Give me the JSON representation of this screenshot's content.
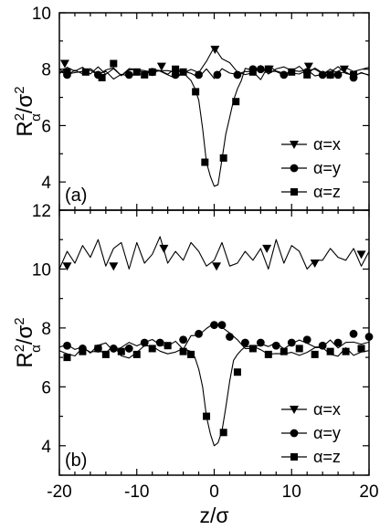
{
  "chart_data": [
    {
      "type": "line",
      "panel_label": "(a)",
      "ylabel_base": "R",
      "ylabel_sup": "2",
      "ylabel_sub": "α",
      "ylabel_den": "/σ",
      "ylabel_den_sup": "2",
      "xlim": [
        -20,
        20
      ],
      "ylim": [
        3,
        10
      ],
      "yticks": [
        4,
        6,
        8,
        10
      ],
      "x_minor_step": 2,
      "y_minor_step": 1,
      "legend_position": "lower-right",
      "series": [
        {
          "name": "α=x",
          "marker": "triangle-down",
          "x": [
            -20.0,
            -19.0,
            -18.0,
            -17.0,
            -16.0,
            -15.0,
            -14.0,
            -13.0,
            -12.0,
            -11.0,
            -10.0,
            -9.0,
            -8.0,
            -7.0,
            -6.0,
            -5.0,
            -4.0,
            -3.0,
            -2.0,
            -1.0,
            0.0,
            1.0,
            2.0,
            3.0,
            4.0,
            5.0,
            6.0,
            7.0,
            8.0,
            9.0,
            10.0,
            11.0,
            12.0,
            13.0,
            14.0,
            15.0,
            16.0,
            17.0,
            18.0,
            19.0,
            20.0
          ],
          "y": [
            7.84,
            8.07,
            7.93,
            8.07,
            7.83,
            8.08,
            7.82,
            8.02,
            7.77,
            8.02,
            7.99,
            7.95,
            7.89,
            7.95,
            7.82,
            8.04,
            7.86,
            7.99,
            7.88,
            8.28,
            8.78,
            8.37,
            8.23,
            7.9,
            7.81,
            7.87,
            8.13,
            7.83,
            8.01,
            8.08,
            7.95,
            8.1,
            7.85,
            8.04,
            7.87,
            7.89,
            8.09,
            7.85,
            7.78,
            7.86,
            7.8
          ],
          "marker_x": [
            -19.3,
            -6.8,
            0.1,
            7.1,
            12.2,
            16.8
          ],
          "marker_y": [
            8.2,
            8.1,
            8.7,
            8.0,
            8.1,
            8.0
          ]
        },
        {
          "name": "α=y",
          "marker": "circle",
          "x": [
            -20.0,
            -19.0,
            -18.0,
            -17.0,
            -16.0,
            -15.0,
            -14.0,
            -13.0,
            -12.0,
            -11.0,
            -10.0,
            -9.0,
            -8.0,
            -7.0,
            -6.0,
            -5.0,
            -4.0,
            -3.0,
            -2.0,
            -1.0,
            0.0,
            1.0,
            2.0,
            3.0,
            4.0,
            5.0,
            6.0,
            7.0,
            8.0,
            9.0,
            10.0,
            11.0,
            12.0,
            13.0,
            14.0,
            15.0,
            16.0,
            17.0,
            18.0,
            19.0,
            20.0
          ],
          "y": [
            8.0,
            7.79,
            7.96,
            7.84,
            8.02,
            7.82,
            7.93,
            7.65,
            7.82,
            7.76,
            7.86,
            7.8,
            7.99,
            7.95,
            7.95,
            7.9,
            7.94,
            7.85,
            7.71,
            8.01,
            7.67,
            8.02,
            7.86,
            7.82,
            7.92,
            7.91,
            7.63,
            8.12,
            7.94,
            7.85,
            7.86,
            7.83,
            7.96,
            8.0,
            7.84,
            7.7,
            7.93,
            8.05,
            7.92,
            7.99,
            8.07
          ],
          "marker_x": [
            -19.0,
            -15.0,
            -11.0,
            -8.0,
            -5.0,
            -2.0,
            0.4,
            3.0,
            5.0,
            6.0,
            9.0,
            12.0,
            14.0,
            15.0,
            16.0,
            18.0
          ],
          "marker_y": [
            7.8,
            7.8,
            7.8,
            7.9,
            7.8,
            7.8,
            7.8,
            7.8,
            8.0,
            8.0,
            7.8,
            7.9,
            7.8,
            7.8,
            7.8,
            7.7
          ]
        },
        {
          "name": "α=z",
          "marker": "square",
          "x": [
            -20.0,
            -19.0,
            -18.0,
            -17.0,
            -16.0,
            -15.0,
            -14.0,
            -13.0,
            -12.0,
            -11.0,
            -10.0,
            -9.0,
            -8.0,
            -7.0,
            -6.0,
            -5.0,
            -4.0,
            -3.0,
            -2.5,
            -2.0,
            -1.5,
            -1.0,
            -0.5,
            0.0,
            0.5,
            1.0,
            1.5,
            2.0,
            2.5,
            3.0,
            3.5,
            4.0,
            5.0,
            6.0,
            7.0,
            8.0,
            9.0,
            10.0,
            11.0,
            12.0,
            13.0,
            14.0,
            15.0,
            16.0,
            17.0,
            18.0,
            19.0,
            20.0
          ],
          "y": [
            7.92,
            7.82,
            7.88,
            7.92,
            7.96,
            7.79,
            7.97,
            8.05,
            7.77,
            7.97,
            8.0,
            7.85,
            7.99,
            7.93,
            7.8,
            7.68,
            7.87,
            7.6,
            7.32,
            6.9,
            5.9,
            4.7,
            4.2,
            3.85,
            3.9,
            4.8,
            5.7,
            6.3,
            6.9,
            7.3,
            7.6,
            8.03,
            7.96,
            7.97,
            7.93,
            7.92,
            7.79,
            7.96,
            7.92,
            7.98,
            7.76,
            7.82,
            8.0,
            7.86,
            7.9,
            7.74,
            7.88,
            7.78
          ],
          "marker_x": [
            -19.0,
            -16.6,
            -14.5,
            -13.0,
            -10.0,
            -9.0,
            -8.0,
            -5.0,
            -4.0,
            -2.4,
            -1.2,
            1.2,
            2.8,
            5.0,
            7.0,
            10.0,
            12.0,
            15.0,
            18.0
          ],
          "marker_y": [
            7.9,
            7.9,
            7.7,
            8.2,
            7.9,
            7.8,
            7.9,
            8.0,
            7.9,
            7.2,
            4.7,
            4.85,
            6.85,
            7.9,
            8.0,
            7.9,
            7.8,
            7.8,
            7.8
          ]
        }
      ]
    },
    {
      "type": "line",
      "panel_label": "(b)",
      "ylabel_base": "R",
      "ylabel_sup": "2",
      "ylabel_sub": "α",
      "ylabel_den": "/σ",
      "ylabel_den_sup": "2",
      "xlabel": "z/σ",
      "xlim": [
        -20,
        20
      ],
      "ylim": [
        3,
        12
      ],
      "xticks": [
        -20,
        -10,
        0,
        10,
        20
      ],
      "yticks": [
        4,
        6,
        8,
        10,
        12
      ],
      "x_minor_step": 2,
      "y_minor_step": 1,
      "legend_position": "lower-right",
      "series": [
        {
          "name": "α=x",
          "marker": "triangle-down",
          "x": [
            -20.0,
            -19.0,
            -18.0,
            -17.0,
            -16.0,
            -15.0,
            -14.0,
            -13.0,
            -12.0,
            -11.0,
            -10.0,
            -9.0,
            -8.0,
            -7.0,
            -6.0,
            -5.0,
            -4.0,
            -3.0,
            -2.0,
            -1.0,
            0.0,
            1.0,
            2.0,
            3.0,
            4.0,
            5.0,
            6.0,
            7.0,
            8.0,
            9.0,
            10.0,
            11.0,
            12.0,
            13.0,
            14.0,
            15.0,
            16.0,
            17.0,
            18.0,
            19.0,
            20.0
          ],
          "y": [
            10.0,
            10.6,
            10.2,
            10.8,
            10.4,
            11.0,
            10.1,
            10.7,
            10.9,
            10.0,
            10.9,
            10.2,
            10.5,
            11.1,
            10.2,
            10.6,
            10.3,
            10.9,
            10.6,
            10.1,
            10.3,
            10.9,
            10.1,
            10.2,
            10.6,
            10.3,
            10.7,
            10.0,
            11.0,
            10.2,
            10.8,
            10.6,
            10.0,
            10.3,
            10.3,
            10.7,
            10.4,
            10.3,
            10.7,
            10.1,
            10.6
          ],
          "marker_x": [
            -19.0,
            -13.0,
            -6.5,
            0.3,
            6.8,
            13.0,
            19.0
          ],
          "marker_y": [
            10.1,
            10.1,
            10.7,
            10.1,
            10.7,
            10.2,
            10.5
          ]
        },
        {
          "name": "α=y",
          "marker": "circle",
          "x": [
            -20.0,
            -19.0,
            -18.0,
            -17.0,
            -16.0,
            -15.0,
            -14.0,
            -13.0,
            -12.0,
            -11.0,
            -10.0,
            -9.0,
            -8.0,
            -7.0,
            -6.0,
            -5.0,
            -4.0,
            -3.0,
            -2.0,
            -1.0,
            0.0,
            1.0,
            2.0,
            3.0,
            4.0,
            5.0,
            6.0,
            7.0,
            8.0,
            9.0,
            10.0,
            11.0,
            12.0,
            13.0,
            14.0,
            15.0,
            16.0,
            17.0,
            18.0,
            19.0,
            20.0
          ],
          "y": [
            7.35,
            7.43,
            7.27,
            7.36,
            7.15,
            7.41,
            7.49,
            7.21,
            7.34,
            7.51,
            7.39,
            7.51,
            7.61,
            7.43,
            7.38,
            7.55,
            7.27,
            7.74,
            7.75,
            7.98,
            8.16,
            8.02,
            7.83,
            7.6,
            7.3,
            7.3,
            7.46,
            7.37,
            7.5,
            7.29,
            7.47,
            7.59,
            7.48,
            7.35,
            7.36,
            7.59,
            7.32,
            7.51,
            7.52,
            7.45,
            7.52
          ],
          "marker_x": [
            -19.0,
            -17.0,
            -15.0,
            -13.0,
            -11.0,
            -9.0,
            -7.0,
            -4.0,
            -2.0,
            0.0,
            1.0,
            2.0,
            4.0,
            6.0,
            8.0,
            10.0,
            12.0,
            14.0,
            16.0,
            18.0,
            20.0
          ],
          "marker_y": [
            7.4,
            7.3,
            7.3,
            7.3,
            7.3,
            7.5,
            7.5,
            7.6,
            7.8,
            8.1,
            8.1,
            7.7,
            7.5,
            7.5,
            7.4,
            7.5,
            7.6,
            7.4,
            7.5,
            7.8,
            7.7
          ]
        },
        {
          "name": "α=z",
          "marker": "square",
          "x": [
            -20.0,
            -19.0,
            -18.0,
            -17.0,
            -16.0,
            -15.0,
            -14.0,
            -13.0,
            -12.0,
            -11.0,
            -10.0,
            -9.0,
            -8.0,
            -7.0,
            -6.0,
            -5.0,
            -4.0,
            -3.0,
            -2.5,
            -2.0,
            -1.5,
            -1.0,
            -0.5,
            0.0,
            0.5,
            1.0,
            1.5,
            2.0,
            2.5,
            3.0,
            3.5,
            4.0,
            5.0,
            6.0,
            7.0,
            8.0,
            9.0,
            10.0,
            11.0,
            12.0,
            13.0,
            14.0,
            15.0,
            16.0,
            17.0,
            18.0,
            19.0,
            20.0
          ],
          "y": [
            7.23,
            7.12,
            7.05,
            7.33,
            7.18,
            7.22,
            7.16,
            7.39,
            7.05,
            6.98,
            7.17,
            7.4,
            7.38,
            7.21,
            7.12,
            7.18,
            7.3,
            7.2,
            7.0,
            6.6,
            6.0,
            5.0,
            4.4,
            4.0,
            4.1,
            4.5,
            5.3,
            6.2,
            6.9,
            7.1,
            7.25,
            7.36,
            7.38,
            7.26,
            7.11,
            7.13,
            7.12,
            7.17,
            7.07,
            7.17,
            7.33,
            7.34,
            7.1,
            7.04,
            7.33,
            7.07,
            7.18,
            7.23
          ],
          "marker_x": [
            -19.0,
            -17.0,
            -15.0,
            -14.0,
            -12.0,
            -10.0,
            -8.0,
            -6.0,
            -4.0,
            -3.0,
            -1.0,
            1.2,
            3.0,
            5.0,
            7.0,
            9.0,
            11.0,
            13.0,
            15.0,
            17.0,
            19.0
          ],
          "marker_y": [
            7.0,
            7.2,
            7.3,
            7.1,
            7.2,
            7.1,
            7.3,
            7.4,
            7.2,
            7.1,
            5.0,
            4.45,
            6.5,
            7.3,
            7.1,
            7.2,
            7.3,
            7.1,
            7.2,
            7.2,
            7.3
          ]
        }
      ]
    }
  ]
}
